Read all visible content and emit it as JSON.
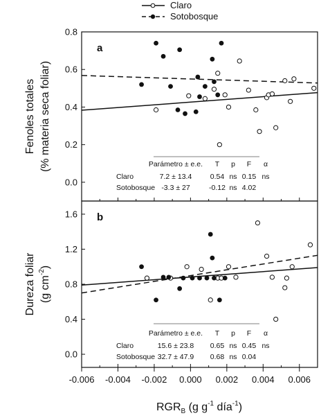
{
  "legend": [
    {
      "name": "Claro",
      "marker": "open-circle",
      "line": "solid"
    },
    {
      "name": "Sotobosque",
      "marker": "filled-circle",
      "line": "dashed"
    }
  ],
  "xlabel": {
    "main": "RGR",
    "sub": "B",
    "unit_a": " (g g",
    "sup": "-1",
    "unit_b": " día",
    "close": ")"
  },
  "chart_data": [
    {
      "type": "scatter",
      "panel": "a",
      "ylabel_line1": "Fenoles totales",
      "ylabel_line2": "(% materia seca foliar)",
      "xlim": [
        -0.006,
        0.007
      ],
      "ylim": [
        -0.1,
        0.8
      ],
      "xticks": [
        "-0.006",
        "-0.004",
        "-0.002",
        "0.000",
        "0.002",
        "0.004",
        "0.006"
      ],
      "yticks": [
        "0.0",
        "0.2",
        "0.4",
        "0.6",
        "0.8"
      ],
      "series": [
        {
          "name": "Claro",
          "marker": "open",
          "line": {
            "style": "solid",
            "x": [
              -0.006,
              0.007
            ],
            "y": [
              0.383,
              0.477
            ]
          },
          "points": [
            [
              -0.0019,
              0.385
            ],
            [
              -0.0001,
              0.46
            ],
            [
              0.0008,
              0.445
            ],
            [
              0.0013,
              0.495
            ],
            [
              0.0015,
              0.58
            ],
            [
              0.0016,
              0.2
            ],
            [
              0.0019,
              0.465
            ],
            [
              0.0021,
              0.4
            ],
            [
              0.0027,
              0.645
            ],
            [
              0.0032,
              0.49
            ],
            [
              0.0036,
              0.385
            ],
            [
              0.0038,
              0.27
            ],
            [
              0.0042,
              0.45
            ],
            [
              0.0043,
              0.465
            ],
            [
              0.0045,
              0.47
            ],
            [
              0.0047,
              0.29
            ],
            [
              0.0052,
              0.54
            ],
            [
              0.0055,
              0.43
            ],
            [
              0.0057,
              0.55
            ],
            [
              0.0068,
              0.5
            ]
          ]
        },
        {
          "name": "Sotobosque",
          "marker": "filled",
          "line": {
            "style": "dashed",
            "x": [
              -0.006,
              0.007
            ],
            "y": [
              0.568,
              0.528
            ]
          },
          "points": [
            [
              -0.0027,
              0.52
            ],
            [
              -0.0019,
              0.74
            ],
            [
              -0.0015,
              0.67
            ],
            [
              -0.0011,
              0.51
            ],
            [
              -0.0007,
              0.385
            ],
            [
              -0.0006,
              0.705
            ],
            [
              -0.0003,
              0.365
            ],
            [
              0.0003,
              0.375
            ],
            [
              0.0004,
              0.56
            ],
            [
              0.0005,
              0.455
            ],
            [
              0.0008,
              0.51
            ],
            [
              0.0012,
              0.655
            ],
            [
              0.0013,
              0.535
            ],
            [
              0.0015,
              0.465
            ],
            [
              0.0017,
              0.74
            ]
          ]
        }
      ],
      "stats": {
        "header": [
          "Parámetro ± e.e.",
          "T",
          "p",
          "F",
          "α"
        ],
        "rows": [
          [
            "Claro",
            "7.2 ± 13.4",
            "0.54",
            "ns",
            "0.15",
            "ns"
          ],
          [
            "Sotobosque",
            "-3.3 ± 27",
            "-0.12",
            "ns",
            "4.02",
            ""
          ]
        ]
      }
    },
    {
      "type": "scatter",
      "panel": "b",
      "ylabel_line1": "Dureza foliar",
      "ylabel_unit": "(g cm",
      "ylabel_sup": "-2",
      "ylabel_close": ")",
      "xlim": [
        -0.006,
        0.007
      ],
      "ylim": [
        -0.15,
        1.75
      ],
      "xticks": [
        "-0.006",
        "-0.004",
        "-0.002",
        "0.000",
        "0.002",
        "0.004",
        "0.006"
      ],
      "yticks": [
        "0.0",
        "0.4",
        "0.8",
        "1.2",
        "1.6"
      ],
      "series": [
        {
          "name": "Claro",
          "marker": "open",
          "line": {
            "style": "solid",
            "x": [
              -0.006,
              0.007
            ],
            "y": [
              0.79,
              0.99
            ]
          },
          "points": [
            [
              -0.0024,
              0.87
            ],
            [
              -0.0011,
              0.87
            ],
            [
              -0.0002,
              1.0
            ],
            [
              0.0006,
              0.97
            ],
            [
              0.0011,
              0.62
            ],
            [
              0.0015,
              0.87
            ],
            [
              0.0017,
              0.87
            ],
            [
              0.0021,
              1.0
            ],
            [
              0.0025,
              0.88
            ],
            [
              0.0037,
              1.5
            ],
            [
              0.0042,
              1.12
            ],
            [
              0.0045,
              0.88
            ],
            [
              0.0047,
              0.4
            ],
            [
              0.0052,
              0.76
            ],
            [
              0.0053,
              0.87
            ],
            [
              0.0056,
              1.0
            ],
            [
              0.0066,
              1.25
            ]
          ]
        },
        {
          "name": "Sotobosque",
          "marker": "filled",
          "line": {
            "style": "dashed",
            "x": [
              -0.006,
              0.007
            ],
            "y": [
              0.7,
              1.13
            ]
          },
          "points": [
            [
              -0.0027,
              1.0
            ],
            [
              -0.0019,
              0.62
            ],
            [
              -0.0015,
              0.88
            ],
            [
              -0.0012,
              0.88
            ],
            [
              -0.0006,
              0.75
            ],
            [
              -0.0004,
              0.87
            ],
            [
              0.0001,
              0.87
            ],
            [
              0.0005,
              0.87
            ],
            [
              0.0009,
              0.87
            ],
            [
              0.0011,
              1.37
            ],
            [
              0.0012,
              1.1
            ],
            [
              0.0013,
              0.87
            ],
            [
              0.0016,
              0.62
            ],
            [
              0.0019,
              0.87
            ]
          ]
        }
      ],
      "stats": {
        "header": [
          "Parámetro ± e.e.",
          "T",
          "p",
          "F",
          "α"
        ],
        "rows": [
          [
            "Claro",
            "15.6 ± 23.8",
            "0.65",
            "ns",
            "0.45",
            "ns"
          ],
          [
            "Sotobosque",
            "32.7 ± 47.9",
            "0.68",
            "ns",
            "0.04",
            ""
          ]
        ]
      }
    }
  ]
}
